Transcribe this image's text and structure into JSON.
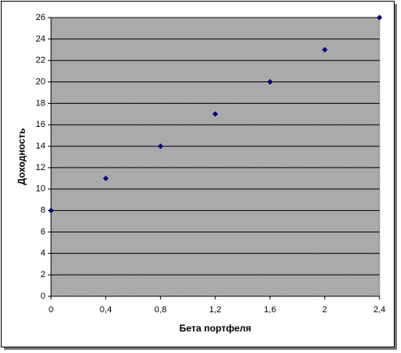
{
  "chart_data": {
    "type": "scatter",
    "xlabel": "Бета портфеля",
    "ylabel": "Доходность",
    "x": [
      0,
      0.4,
      0.8,
      1.2,
      1.6,
      2,
      2.4
    ],
    "values": [
      8,
      11,
      14,
      17,
      20,
      23,
      26
    ],
    "color": "#000080",
    "xlim": [
      0,
      2.4
    ],
    "ylim": [
      0,
      26
    ],
    "xticks": [
      0,
      {
        "value": 0.4,
        "label": "0,4"
      },
      {
        "value": 0.8,
        "label": "0,8"
      },
      {
        "value": 1.2,
        "label": "1,2"
      },
      {
        "value": 1.6,
        "label": "1,6"
      },
      2,
      {
        "value": 2.4,
        "label": "2,4"
      }
    ],
    "yticks": [
      0,
      2,
      4,
      6,
      8,
      10,
      12,
      14,
      16,
      18,
      20,
      22,
      24,
      26
    ],
    "grid": true
  }
}
